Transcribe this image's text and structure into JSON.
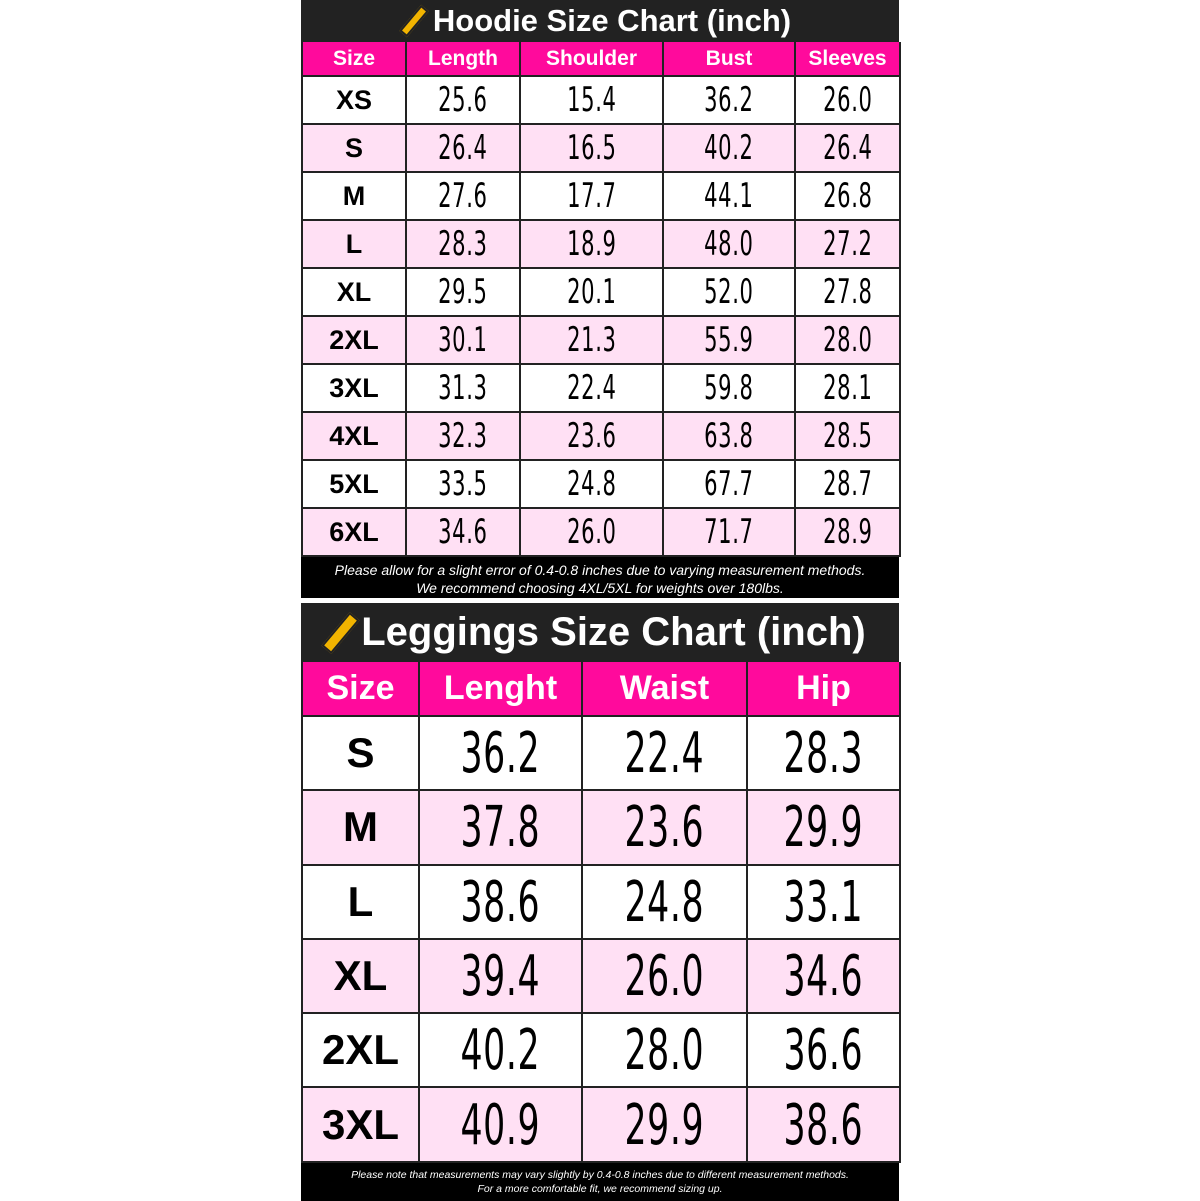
{
  "hoodie": {
    "title": "Hoodie Size Chart (inch)",
    "icon": "ruler-icon",
    "headers": [
      "Size",
      "Length",
      "Shoulder",
      "Bust",
      "Sleeves"
    ],
    "rows": [
      [
        "XS",
        "25.6",
        "15.4",
        "36.2",
        "26.0"
      ],
      [
        "S",
        "26.4",
        "16.5",
        "40.2",
        "26.4"
      ],
      [
        "M",
        "27.6",
        "17.7",
        "44.1",
        "26.8"
      ],
      [
        "L",
        "28.3",
        "18.9",
        "48.0",
        "27.2"
      ],
      [
        "XL",
        "29.5",
        "20.1",
        "52.0",
        "27.8"
      ],
      [
        "2XL",
        "30.1",
        "21.3",
        "55.9",
        "28.0"
      ],
      [
        "3XL",
        "31.3",
        "22.4",
        "59.8",
        "28.1"
      ],
      [
        "4XL",
        "32.3",
        "23.6",
        "63.8",
        "28.5"
      ],
      [
        "5XL",
        "33.5",
        "24.8",
        "67.7",
        "28.7"
      ],
      [
        "6XL",
        "34.6",
        "26.0",
        "71.7",
        "28.9"
      ]
    ],
    "note": [
      "Please allow for a slight error of 0.4-0.8 inches due to varying measurement methods.",
      "We recommend choosing 4XL/5XL for weights over 180lbs."
    ]
  },
  "leggings": {
    "title": "Leggings Size Chart (inch)",
    "icon": "ruler-icon",
    "headers": [
      "Size",
      "Lenght",
      "Waist",
      "Hip"
    ],
    "rows": [
      [
        "S",
        "36.2",
        "22.4",
        "28.3"
      ],
      [
        "M",
        "37.8",
        "23.6",
        "29.9"
      ],
      [
        "L",
        "38.6",
        "24.8",
        "33.1"
      ],
      [
        "XL",
        "39.4",
        "26.0",
        "34.6"
      ],
      [
        "2XL",
        "40.2",
        "28.0",
        "36.6"
      ],
      [
        "3XL",
        "40.9",
        "29.9",
        "38.6"
      ]
    ],
    "note": [
      "Please note that measurements may vary slightly by 0.4-0.8 inches due to different measurement methods.",
      "For a more comfortable fit, we recommend sizing up."
    ]
  },
  "colors": {
    "header": "#ff0a9c",
    "title_bg": "#222222",
    "row_alt": "#ffe0f4"
  }
}
